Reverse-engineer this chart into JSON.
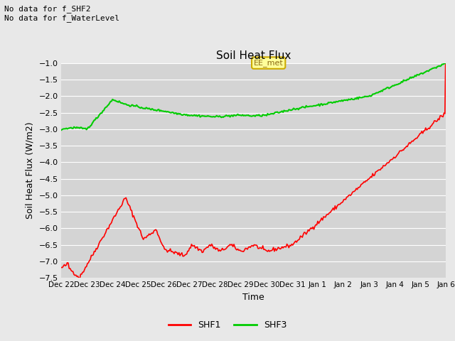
{
  "title": "Soil Heat Flux",
  "xlabel": "Time",
  "ylabel": "Soil Heat Flux (W/m2)",
  "ylim": [
    -7.5,
    -1.0
  ],
  "yticks": [
    -7.5,
    -7.0,
    -6.5,
    -6.0,
    -5.5,
    -5.0,
    -4.5,
    -4.0,
    -3.5,
    -3.0,
    -2.5,
    -2.0,
    -1.5,
    -1.0
  ],
  "bg_color": "#e8e8e8",
  "plot_bg_color": "#d4d4d4",
  "grid_color": "#ffffff",
  "line1_color": "#ff0000",
  "line2_color": "#00cc00",
  "annotation_text": "No data for f_SHF2\nNo data for f_WaterLevel",
  "legend_label1": "SHF1",
  "legend_label2": "SHF3",
  "ee_met_label": "EE_met",
  "xtick_labels": [
    "Dec 22",
    "Dec 23",
    "Dec 24",
    "Dec 25",
    "Dec 26",
    "Dec 27",
    "Dec 28",
    "Dec 29",
    "Dec 30",
    "Dec 31",
    "Jan 1",
    "Jan 2",
    "Jan 3",
    "Jan 4",
    "Jan 5",
    "Jan 6"
  ],
  "n_points": 400
}
